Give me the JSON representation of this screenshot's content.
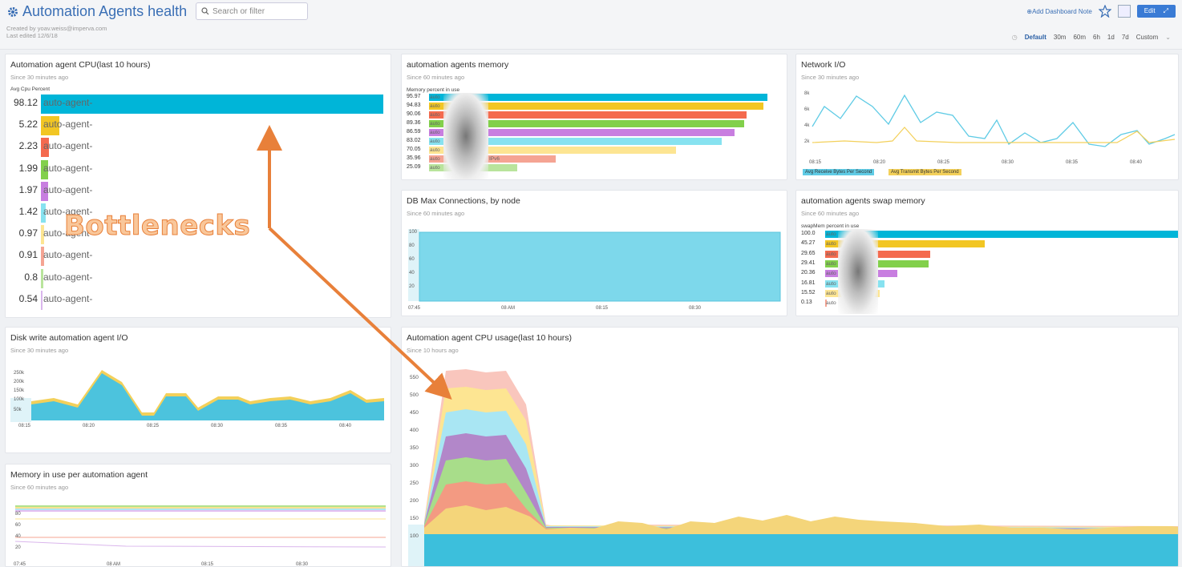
{
  "header": {
    "title": "Automation Agents health",
    "search_placeholder": "Search or filter",
    "created_by": "Created by yoav.weiss@imperva.com",
    "last_edited": "Last edited 12/6/18",
    "add_note": "⊕Add Dashboard Note",
    "edit_label": "Edit",
    "times": [
      "Default",
      "30m",
      "60m",
      "6h",
      "1d",
      "7d",
      "Custom"
    ]
  },
  "panels": {
    "cpu10": {
      "title": "Automation agent CPU(last 10 hours)",
      "sub": "Since 30 minutes ago",
      "label": "Avg Cpu Percent",
      "rows": [
        {
          "value": "98.12",
          "label": "auto-agent-",
          "color": "#00b5d8",
          "fraction": 0.98
        },
        {
          "value": "5.22",
          "label": "auto-agent-",
          "color": "#f2c623",
          "fraction": 0.052
        },
        {
          "value": "2.23",
          "label": "auto-agent-",
          "color": "#f46a4e",
          "fraction": 0.022
        },
        {
          "value": "1.99",
          "label": "auto-agent-",
          "color": "#82d04b",
          "fraction": 0.02
        },
        {
          "value": "1.97",
          "label": "auto-agent-",
          "color": "#c87ee0",
          "fraction": 0.02
        },
        {
          "value": "1.42",
          "label": "auto-agent-",
          "color": "#87e2f0",
          "fraction": 0.014
        },
        {
          "value": "0.97",
          "label": "auto-agent-",
          "color": "#fde592",
          "fraction": 0.01
        },
        {
          "value": "0.91",
          "label": "auto-agent-",
          "color": "#f5a493",
          "fraction": 0.009
        },
        {
          "value": "0.8",
          "label": "auto-agent-",
          "color": "#b9e49c",
          "fraction": 0.008
        },
        {
          "value": "0.54",
          "label": "auto-agent-",
          "color": "#dab6ec",
          "fraction": 0.005
        }
      ]
    },
    "mem": {
      "title": "automation agents memory",
      "sub": "Since 60 minutes ago",
      "label": "Memory percent in use",
      "rows": [
        {
          "value": "95.97",
          "label": "auto",
          "color": "#00b5d8",
          "fraction": 0.96
        },
        {
          "value": "94.83",
          "label": "auto",
          "color": "#f2c623",
          "fraction": 0.948
        },
        {
          "value": "90.06",
          "label": "auto",
          "color": "#f46a4e",
          "fraction": 0.9
        },
        {
          "value": "89.36",
          "label": "auto",
          "color": "#82d04b",
          "fraction": 0.893
        },
        {
          "value": "86.59",
          "label": "auto",
          "color": "#c87ee0",
          "fraction": 0.866
        },
        {
          "value": "83.02",
          "label": "auto",
          "color": "#87e2f0",
          "fraction": 0.83
        },
        {
          "value": "70.05",
          "label": "auto",
          "color": "#fde592",
          "fraction": 0.7
        },
        {
          "value": "35.96",
          "label": "auto",
          "color": "#f5a493",
          "fraction": 0.36,
          "extra": "IPv6"
        },
        {
          "value": "25.09",
          "label": "auto",
          "color": "#b9e49c",
          "fraction": 0.25
        }
      ]
    },
    "net": {
      "title": "Network I/O",
      "sub": "Since 30 minutes ago",
      "yticks": [
        "8k",
        "6k",
        "4k",
        "2k"
      ],
      "xticks": [
        "08:15",
        "08:20",
        "08:25",
        "08:30",
        "08:35",
        "08:40"
      ],
      "legend": [
        "Avg Receive Bytes Per Second",
        "Avg Transmit Bytes Per Second"
      ]
    },
    "db": {
      "title": "DB Max Connections, by node",
      "sub": "Since 60 minutes ago",
      "yticks": [
        "100",
        "80",
        "60",
        "40",
        "20"
      ],
      "xticks": [
        "07:45",
        "08 AM",
        "08:15",
        "08:30"
      ]
    },
    "swap": {
      "title": "automation agents swap memory",
      "sub": "Since 60 minutes ago",
      "label": "swapMem percent in use",
      "rows": [
        {
          "value": "100.0",
          "label": "auto",
          "color": "#00b5d8",
          "fraction": 1.0
        },
        {
          "value": "45.27",
          "label": "auto",
          "color": "#f2c623",
          "fraction": 0.453
        },
        {
          "value": "29.65",
          "label": "auto",
          "color": "#f46a4e",
          "fraction": 0.297
        },
        {
          "value": "29.41",
          "label": "auto",
          "color": "#82d04b",
          "fraction": 0.294
        },
        {
          "value": "20.36",
          "label": "auto",
          "color": "#c87ee0",
          "fraction": 0.204
        },
        {
          "value": "16.81",
          "label": "auto",
          "color": "#87e2f0",
          "fraction": 0.168
        },
        {
          "value": "15.52",
          "label": "auto",
          "color": "#fde592",
          "fraction": 0.155
        },
        {
          "value": "0.13",
          "label": "auto",
          "color": "#f5a493",
          "fraction": 0.0013
        }
      ]
    },
    "disk": {
      "title": "Disk write automation agent I/O",
      "sub": "Since 30 minutes ago",
      "yticks": [
        "250k",
        "200k",
        "150k",
        "100k",
        "50k"
      ],
      "xticks": [
        "08:15",
        "08:20",
        "08:25",
        "08:30",
        "08:35",
        "08:40"
      ]
    },
    "cpuusage": {
      "title": "Automation agent CPU usage(last 10 hours)",
      "sub": "Since 10 hours ago",
      "yticks": [
        "550",
        "500",
        "450",
        "400",
        "350",
        "300",
        "250",
        "200",
        "150",
        "100"
      ]
    },
    "memuse": {
      "title": "Memory in use per automation agent",
      "sub": "Since 60 minutes ago",
      "yticks": [
        "80",
        "60",
        "40",
        "20"
      ],
      "xticks": [
        "07:45",
        "08 AM",
        "08:15",
        "08:30"
      ]
    }
  },
  "annotation": "Bottlenecks"
}
